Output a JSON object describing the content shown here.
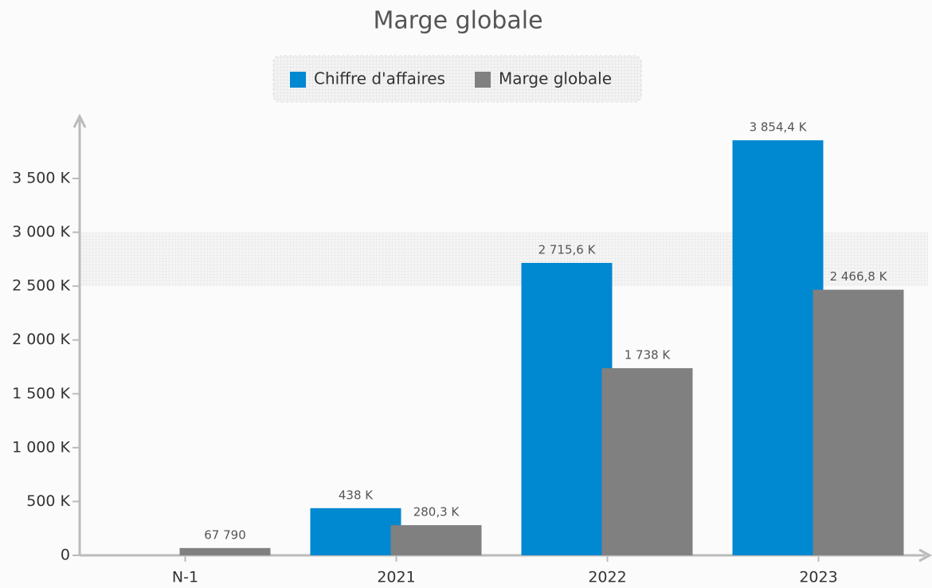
{
  "chart_data": {
    "type": "bar",
    "title": "Marge globale",
    "categories": [
      "N-1",
      "2021",
      "2022",
      "2023"
    ],
    "series": [
      {
        "name": "Chiffre d'affaires",
        "color": "#0088d1",
        "values": [
          null,
          438000,
          2715600,
          3854400
        ],
        "value_labels": [
          null,
          "438 K",
          "2 715,6 K",
          "3 854,4 K"
        ]
      },
      {
        "name": "Marge globale",
        "color": "#808080",
        "values": [
          67790,
          280300,
          1738000,
          2466800
        ],
        "value_labels": [
          "67 790",
          "280,3 K",
          "1 738 K",
          "2 466,8 K"
        ]
      }
    ],
    "ylim": [
      0,
      4000000
    ],
    "yticks": [
      {
        "value": 0,
        "label": "0"
      },
      {
        "value": 500000,
        "label": "500 K"
      },
      {
        "value": 1000000,
        "label": "1 000 K"
      },
      {
        "value": 1500000,
        "label": "1 500 K"
      },
      {
        "value": 2000000,
        "label": "2 000 K"
      },
      {
        "value": 2500000,
        "label": "2 500 K"
      },
      {
        "value": 3000000,
        "label": "3 000 K"
      },
      {
        "value": 3500000,
        "label": "3 500 K"
      }
    ],
    "legend": "top"
  }
}
